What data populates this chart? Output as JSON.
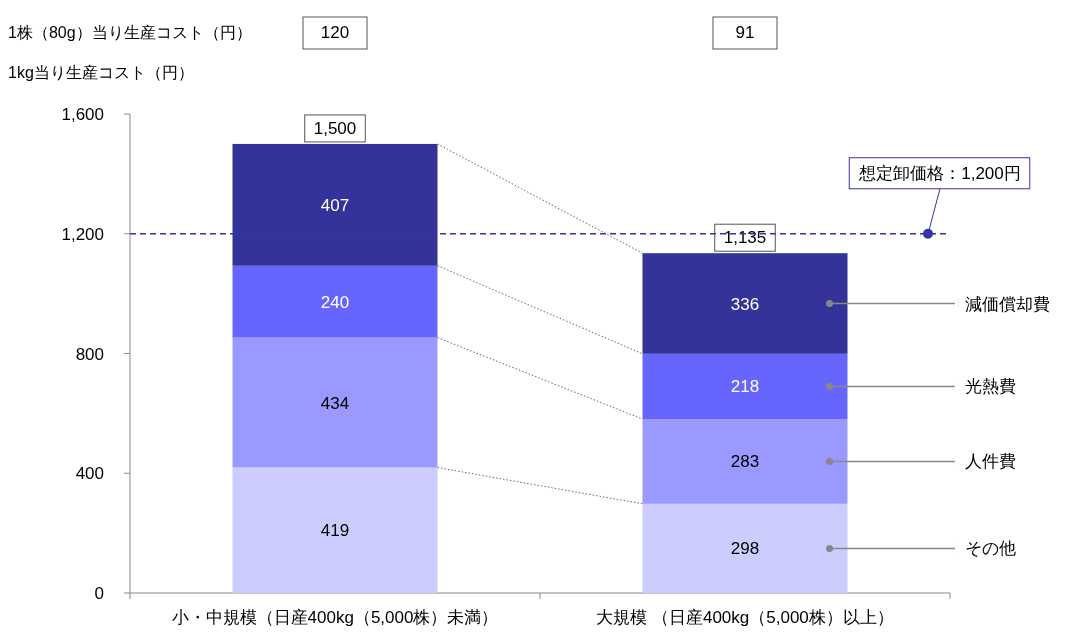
{
  "chart_data": {
    "type": "bar",
    "stacked": true,
    "ylabel": "1kg当り生産コスト（円）",
    "annotations": [
      "1株（80g）当り生産コスト（円）",
      "120",
      "91"
    ],
    "categories": [
      "小・中規模（日産400kg（5,000株）未満）",
      "大規模 （日産400kg（5,000株）以上）"
    ],
    "series": [
      {
        "name": "その他",
        "color": "#ccccff",
        "values": [
          419,
          298
        ]
      },
      {
        "name": "人件費",
        "color": "#9999ff",
        "values": [
          434,
          283
        ]
      },
      {
        "name": "光熱費",
        "color": "#6666ff",
        "values": [
          240,
          218
        ]
      },
      {
        "name": "減価償却費",
        "color": "#333399",
        "values": [
          407,
          336
        ]
      }
    ],
    "totals": [
      "1,500",
      "1,135"
    ],
    "ylim": [
      0,
      1600
    ],
    "yticks": [
      0,
      400,
      800,
      {
        "value": 1200,
        "label": "1,200"
      },
      {
        "value": 1600,
        "label": "1,600"
      }
    ],
    "ref_lines": [
      {
        "axis": "y",
        "value": 1200,
        "label": "想定卸価格：1,200円",
        "color": "#3333aa",
        "line_style": "dashed"
      }
    ],
    "data_labels": true,
    "legend": "right",
    "grid": false
  }
}
